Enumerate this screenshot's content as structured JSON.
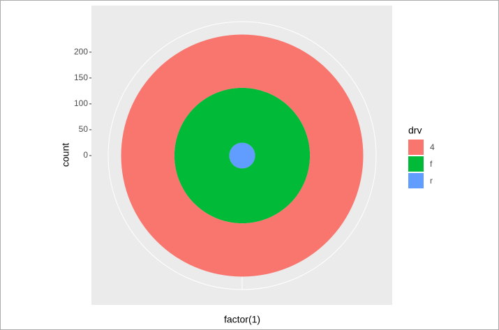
{
  "chart_data": {
    "type": "bar",
    "coord": "polar",
    "x_label": "factor(1)",
    "y_label": "count",
    "legend_title": "drv",
    "categories": [
      null
    ],
    "series": [
      {
        "name": "4",
        "color": "#F8766D",
        "values": [
          103
        ]
      },
      {
        "name": "f",
        "color": "#00BA38",
        "values": [
          106
        ]
      },
      {
        "name": "r",
        "color": "#619CFF",
        "values": [
          25
        ]
      }
    ],
    "ylim": [
      0,
      259
    ],
    "yticks": [
      0,
      50,
      100,
      150,
      200
    ],
    "grid": true
  }
}
